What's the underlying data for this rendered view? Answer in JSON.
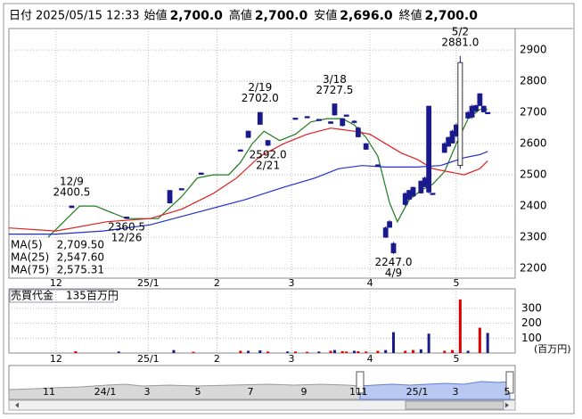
{
  "header": {
    "date_label": "日付",
    "date": "2025/05/15 12:33",
    "items": [
      {
        "label": "始値",
        "value": "2,700.0",
        "color": "#000000"
      },
      {
        "label": "高値",
        "value": "2,700.0",
        "color": "#e00000"
      },
      {
        "label": "安値",
        "value": "2,696.0",
        "color": "#009000"
      },
      {
        "label": "終値",
        "value": "2,700.0",
        "color": "#000000"
      }
    ]
  },
  "chart_data": [
    {
      "type": "candlestick",
      "xlim": [
        0,
        129
      ],
      "xticks": [
        {
          "value": 12,
          "label": "12"
        },
        {
          "value": 35.5,
          "label": "25/1"
        },
        {
          "value": 53,
          "label": "2"
        },
        {
          "value": 72,
          "label": "3"
        },
        {
          "value": 92,
          "label": "4"
        },
        {
          "value": 114,
          "label": "5"
        }
      ],
      "ylim": [
        2169,
        2969
      ],
      "yticks": [
        2200,
        2300,
        2400,
        2500,
        2600,
        2700,
        2800,
        2900
      ],
      "grid": true,
      "up_color": "#ffffff",
      "down_color": "#1a1a8c",
      "x": [
        16,
        30,
        41,
        44,
        49,
        59,
        61,
        64,
        66,
        73,
        76,
        79,
        82,
        83,
        85,
        86,
        88,
        89,
        91,
        94,
        96,
        97,
        98,
        101,
        102,
        103,
        105,
        106,
        107,
        108,
        111,
        112,
        113,
        114,
        115,
        117,
        118,
        119,
        120,
        121,
        122
      ],
      "open": [
        2400.5,
        2365,
        2450,
        2456,
        2506,
        2580,
        2640,
        2700,
        2610,
        2682,
        2687,
        2678,
        2670,
        2727.5,
        2680,
        2692,
        2672,
        2650,
        2600,
        2532,
        2330,
        2350,
        2280,
        2440,
        2450,
        2460,
        2480,
        2490,
        2720,
        2441,
        2600,
        2620,
        2640,
        2660,
        2530,
        2700,
        2720,
        2722,
        2760,
        2720,
        2700
      ],
      "high": [
        2400.5,
        2365,
        2452,
        2456,
        2506,
        2582,
        2642,
        2702,
        2612,
        2682,
        2687,
        2678,
        2672,
        2727.5,
        2682,
        2692,
        2675,
        2655,
        2602,
        2534,
        2335,
        2355,
        2285,
        2445,
        2452,
        2462,
        2482,
        2495,
        2722,
        2441,
        2605,
        2622,
        2645,
        2665,
        2881,
        2705,
        2725,
        2725,
        2762,
        2722,
        2700
      ],
      "low": [
        2395,
        2360.5,
        2408,
        2454,
        2504,
        2578,
        2618,
        2660,
        2592,
        2680,
        2685,
        2676,
        2664,
        2690,
        2655,
        2690,
        2665,
        2620,
        2580,
        2526,
        2298,
        2330,
        2247,
        2400,
        2420,
        2430,
        2440,
        2460,
        2440,
        2439,
        2570,
        2590,
        2600,
        2620,
        2520,
        2680,
        2680,
        2700,
        2720,
        2700,
        2696
      ],
      "close": [
        2395,
        2360.5,
        2410,
        2454,
        2504,
        2578,
        2620,
        2662,
        2595,
        2680,
        2685,
        2676,
        2665,
        2692,
        2658,
        2690,
        2668,
        2622,
        2582,
        2528,
        2300,
        2332,
        2250,
        2405,
        2422,
        2432,
        2442,
        2462,
        2445,
        2439,
        2572,
        2592,
        2602,
        2625,
        2860,
        2682,
        2685,
        2705,
        2722,
        2702,
        2700
      ],
      "series": [
        {
          "name": "MA(5)",
          "latest": "2,709.50",
          "color": "#1e7a1e",
          "x": [
            10,
            18,
            22,
            30,
            38,
            44,
            48,
            52,
            56,
            59,
            62,
            65,
            69,
            73,
            77,
            81,
            85,
            88,
            91,
            94,
            97,
            99,
            102,
            105,
            108,
            111,
            114,
            117,
            120,
            122
          ],
          "values": [
            2300,
            2400,
            2400,
            2360,
            2360,
            2430,
            2490,
            2500,
            2500,
            2540,
            2600,
            2640,
            2610,
            2630,
            2670,
            2680,
            2680,
            2660,
            2620,
            2560,
            2410,
            2350,
            2420,
            2450,
            2470,
            2510,
            2600,
            2680,
            2710,
            2710
          ]
        },
        {
          "name": "MA(25)",
          "latest": "2,547.60",
          "color": "#e02020",
          "x": [
            0,
            12,
            25,
            36,
            44,
            52,
            58,
            64,
            70,
            76,
            82,
            88,
            92,
            96,
            100,
            104,
            108,
            112,
            116,
            120,
            122
          ],
          "values": [
            2330,
            2320,
            2350,
            2360,
            2390,
            2440,
            2490,
            2560,
            2600,
            2630,
            2650,
            2640,
            2630,
            2600,
            2570,
            2550,
            2520,
            2510,
            2500,
            2520,
            2545
          ]
        },
        {
          "name": "MA(75)",
          "latest": "2,575.31",
          "color": "#2030d0",
          "x": [
            0,
            12,
            24,
            36,
            48,
            60,
            70,
            78,
            84,
            90,
            96,
            104,
            110,
            116,
            120,
            122
          ],
          "values": [
            2310,
            2310,
            2320,
            2340,
            2380,
            2420,
            2460,
            2490,
            2520,
            2530,
            2525,
            2525,
            2530,
            2555,
            2565,
            2575
          ]
        }
      ],
      "annotations": [
        {
          "x": 16,
          "value": 2400.5,
          "label": "2400.5",
          "date": "12/9",
          "side": "above"
        },
        {
          "x": 30,
          "value": 2360.5,
          "label": "2360.5",
          "date": "12/26",
          "side": "below"
        },
        {
          "x": 64,
          "value": 2702,
          "label": "2702.0",
          "date": "2/19",
          "side": "above"
        },
        {
          "x": 66,
          "value": 2592,
          "label": "2592.0",
          "date": "2/21",
          "side": "below"
        },
        {
          "x": 83,
          "value": 2727.5,
          "label": "2727.5",
          "date": "3/18",
          "side": "above"
        },
        {
          "x": 98,
          "value": 2247,
          "label": "2247.0",
          "date": "4/9",
          "side": "below"
        },
        {
          "x": 115,
          "value": 2881,
          "label": "2881.0",
          "date": "5/2",
          "side": "above"
        }
      ]
    },
    {
      "type": "bar",
      "title": "売買代金",
      "latest": "135百万円",
      "unit": "(百万円)",
      "ylim": [
        0,
        431
      ],
      "yticks": [
        100,
        200,
        300
      ],
      "x": [
        17,
        28,
        42,
        47,
        59,
        61,
        64,
        66,
        71,
        73,
        76,
        79,
        82,
        83,
        85,
        86,
        88,
        89,
        91,
        94,
        96,
        98,
        101,
        103,
        105,
        107,
        111,
        113,
        115,
        117,
        120,
        122
      ],
      "values": [
        12,
        10,
        20,
        8,
        15,
        15,
        18,
        10,
        10,
        10,
        8,
        10,
        15,
        20,
        12,
        10,
        15,
        12,
        10,
        15,
        20,
        140,
        15,
        20,
        25,
        130,
        15,
        20,
        360,
        15,
        170,
        135
      ],
      "colors": [
        "#e00000",
        "#1a1a8c",
        "#1a1a8c",
        "#e00000",
        "#e00000",
        "#1a1a8c",
        "#1a1a8c",
        "#e00000",
        "#1a1a8c",
        "#e00000",
        "#e00000",
        "#1a1a8c",
        "#e00000",
        "#1a1a8c",
        "#e00000",
        "#e00000",
        "#1a1a8c",
        "#e00000",
        "#e00000",
        "#e00000",
        "#1a1a8c",
        "#1a1a8c",
        "#e00000",
        "#e00000",
        "#1a1a8c",
        "#1a1a8c",
        "#e00000",
        "#e00000",
        "#e00000",
        "#1a1a8c",
        "#e00000",
        "#1a1a8c"
      ]
    }
  ],
  "navigator": {
    "labels": [
      "11",
      "24/1",
      "3",
      "5",
      "7",
      "9",
      "11",
      "1",
      "25/1",
      "3",
      "5"
    ]
  }
}
